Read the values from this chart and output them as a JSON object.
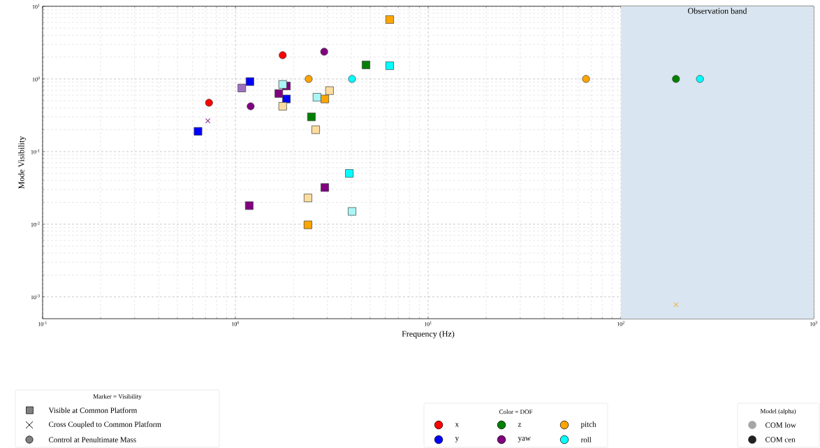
{
  "chart_data": {
    "type": "scatter",
    "xlabel": "Frequency (Hz)",
    "ylabel": "Mode Visibility",
    "log": "xy",
    "grid": true,
    "legend": "bottom",
    "legend_title": "Color = DOF",
    "xlim": [
      0.1,
      1000
    ],
    "ylim": [
      0.0005,
      10
    ],
    "xticks": [
      {
        "value": 0.1,
        "label": "10$^{-1}$"
      },
      {
        "value": 1,
        "label": "10$^{0}$"
      },
      {
        "value": 10,
        "label": "10$^{1}$"
      },
      {
        "value": 100,
        "label": "10$^{2}$"
      },
      {
        "value": 1000,
        "label": "10$^{3}$"
      }
    ],
    "yticks": [
      {
        "value": 0.001,
        "label": "10$^{-3}$"
      },
      {
        "value": 0.01,
        "label": "10$^{-2}$"
      },
      {
        "value": 0.1,
        "label": "10$^{-1}$"
      },
      {
        "value": 1,
        "label": "10$^{0}$"
      },
      {
        "value": 10,
        "label": "10$^{1}$"
      }
    ],
    "bands": [
      {
        "axis": "x",
        "from": 100,
        "to": 1000,
        "label": "Observation band",
        "color": "#d9e5f0"
      }
    ],
    "annotations": [
      "Marker = Visibility",
      "Visible at Common Platform",
      "Cross Coupled to Common Platform",
      "Control at Penultimate Mass",
      "Model (alpha)",
      "COM low",
      "COM cen"
    ],
    "series": [
      {
        "name": "x",
        "color": "#ff0000",
        "marker": "circle",
        "x": [
          0.73,
          1.76
        ],
        "values": [
          0.47,
          2.12
        ]
      },
      {
        "name": "y",
        "color": "#0000ff",
        "marker": "square",
        "x": [
          0.64,
          1.19,
          1.84
        ],
        "values": [
          0.19,
          0.92,
          0.53
        ]
      },
      {
        "name": "z",
        "color": "#008000",
        "marker": "square",
        "x": [
          2.48,
          4.76
        ],
        "values": [
          0.3,
          1.56
        ]
      },
      {
        "color": "#008000",
        "marker": "circle",
        "x": [
          193
        ],
        "values": [
          1.0
        ]
      },
      {
        "name": "yaw",
        "color": "#800080",
        "marker": "square",
        "x": [
          1.68,
          1.84,
          1.18,
          2.91
        ],
        "values": [
          0.63,
          0.8,
          0.018,
          0.032
        ]
      },
      {
        "color": "#800080",
        "marker": "circle",
        "x": [
          1.2,
          2.89
        ],
        "values": [
          0.42,
          2.37
        ]
      },
      {
        "color": "#8a2a8a",
        "marker": "cross",
        "x": [
          0.72
        ],
        "values": [
          0.265
        ]
      },
      {
        "color": "#a070c0",
        "marker": "square",
        "x": [
          1.08
        ],
        "values": [
          0.75
        ]
      },
      {
        "name": "pitch",
        "color": "#ffa500",
        "marker": "square",
        "x": [
          6.32,
          2.91,
          2.38
        ],
        "values": [
          6.57,
          0.53,
          0.0098
        ]
      },
      {
        "color": "#ffa500",
        "marker": "circle",
        "x": [
          2.4,
          65.9
        ],
        "values": [
          1.0,
          1.0
        ]
      },
      {
        "color": "#f5b041",
        "marker": "cross",
        "x": [
          193
        ],
        "values": [
          0.00078
        ]
      },
      {
        "color": "#fddca0",
        "marker": "square",
        "x": [
          1.76,
          3.08,
          2.61,
          2.38
        ],
        "values": [
          0.42,
          0.69,
          0.2,
          0.023
        ]
      },
      {
        "name": "roll",
        "color": "#00ffff",
        "marker": "square",
        "x": [
          6.32,
          3.9
        ],
        "values": [
          1.52,
          0.05
        ]
      },
      {
        "color": "#00ffff",
        "marker": "circle",
        "x": [
          4.03,
          257
        ],
        "values": [
          1.0,
          1.0
        ]
      },
      {
        "color": "#aaf5f5",
        "marker": "square",
        "x": [
          1.76,
          2.65,
          4.03
        ],
        "values": [
          0.84,
          0.56,
          0.015
        ]
      }
    ]
  }
}
